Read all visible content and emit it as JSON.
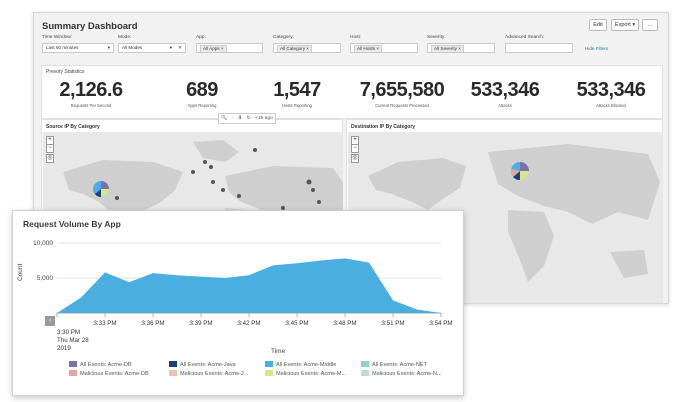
{
  "dashboard": {
    "title": "Summary Dashboard",
    "buttons": {
      "edit": "Edit",
      "export": "Export ▾",
      "more": "..."
    },
    "filters": {
      "time_window": {
        "label": "Time Window:",
        "value": "Last 60 minutes"
      },
      "mode": {
        "label": "Mode:",
        "value": "All Modes",
        "clear": "✕"
      },
      "app": {
        "label": "App:",
        "token": "All Apps ×"
      },
      "category": {
        "label": "Category:",
        "token": "All Category ×"
      },
      "host": {
        "label": "Host:",
        "token": "All Hosts ×"
      },
      "severity": {
        "label": "Severity:",
        "token": "All Severity ×"
      },
      "advanced": {
        "label": "Advanced Search:",
        "value": ""
      },
      "hide_filters": "Hide Filters"
    },
    "stats": {
      "title": "Prevoty Statistics",
      "items": [
        {
          "value": "2,126.6",
          "label": "Requests Per Second"
        },
        {
          "value": "689",
          "label": "Apps Reporting"
        },
        {
          "value": "1,547",
          "label": "Hosts Reporting"
        },
        {
          "value": "7,655,580",
          "label": "Current Requests Processed"
        },
        {
          "value": "533,346",
          "label": "Attacks"
        },
        {
          "value": "533,346",
          "label": "Attacks Blocked"
        }
      ]
    },
    "toolbar": {
      "zoom": "🔍",
      "item2": "·",
      "download": "⬇",
      "refresh": "↻",
      "age": "<1h ago"
    },
    "maps": {
      "source_title": "Source IP By Category",
      "dest_title": "Destination IP By Category",
      "zoom_in": "+",
      "zoom_out": "−",
      "locate": "◎"
    }
  },
  "chart": {
    "title": "Request Volume By App",
    "nav_arrow": "‹",
    "date_lines": [
      "Thu Mar 28",
      "2019"
    ],
    "first_tick_label": "3:30 PM",
    "colors": {
      "area": "#4aaee0",
      "grid": "#dedede"
    }
  },
  "chart_data": {
    "type": "area",
    "title": "Request Volume By App",
    "xlabel": "Time",
    "ylabel": "Count",
    "x": [
      "3:30 PM",
      "3:31:30 PM",
      "3:33 PM",
      "3:34:30 PM",
      "3:36 PM",
      "3:37:30 PM",
      "3:39 PM",
      "3:40:30 PM",
      "3:42 PM",
      "3:43:30 PM",
      "3:45 PM",
      "3:46:30 PM",
      "3:48 PM",
      "3:49:30 PM",
      "3:51 PM",
      "3:52:30 PM",
      "3:54 PM"
    ],
    "x_ticks": [
      "3:30 PM",
      "3:33 PM",
      "3:36 PM",
      "3:39 PM",
      "3:42 PM",
      "3:45 PM",
      "3:48 PM",
      "3:51 PM",
      "3:54 PM"
    ],
    "values": [
      0,
      2200,
      5800,
      4400,
      5700,
      5400,
      5200,
      5000,
      5400,
      6800,
      7100,
      7500,
      7800,
      7200,
      1800,
      500,
      0
    ],
    "y_ticks": [
      "5,000",
      "10,000"
    ],
    "ylim": [
      0,
      10000
    ],
    "grid": true,
    "legend_position": "bottom",
    "legend": [
      {
        "name": "All Events: Acme-DB",
        "color": "#7f6fa8"
      },
      {
        "name": "All Events: Acme-Java",
        "color": "#1d3f7a"
      },
      {
        "name": "All Events: Acme-Middle",
        "color": "#4aaee0"
      },
      {
        "name": "All Events: Acme-NET",
        "color": "#8fd3c6"
      },
      {
        "name": "Malicious Events: Acme-DB",
        "color": "#e3a7a0"
      },
      {
        "name": "Malicious Events: Acme-J...",
        "color": "#f0c2a8"
      },
      {
        "name": "Malicious Events: Acme-M...",
        "color": "#d9e58c"
      },
      {
        "name": "Malicious Events: Acme-N...",
        "color": "#b9dfd5"
      }
    ]
  }
}
